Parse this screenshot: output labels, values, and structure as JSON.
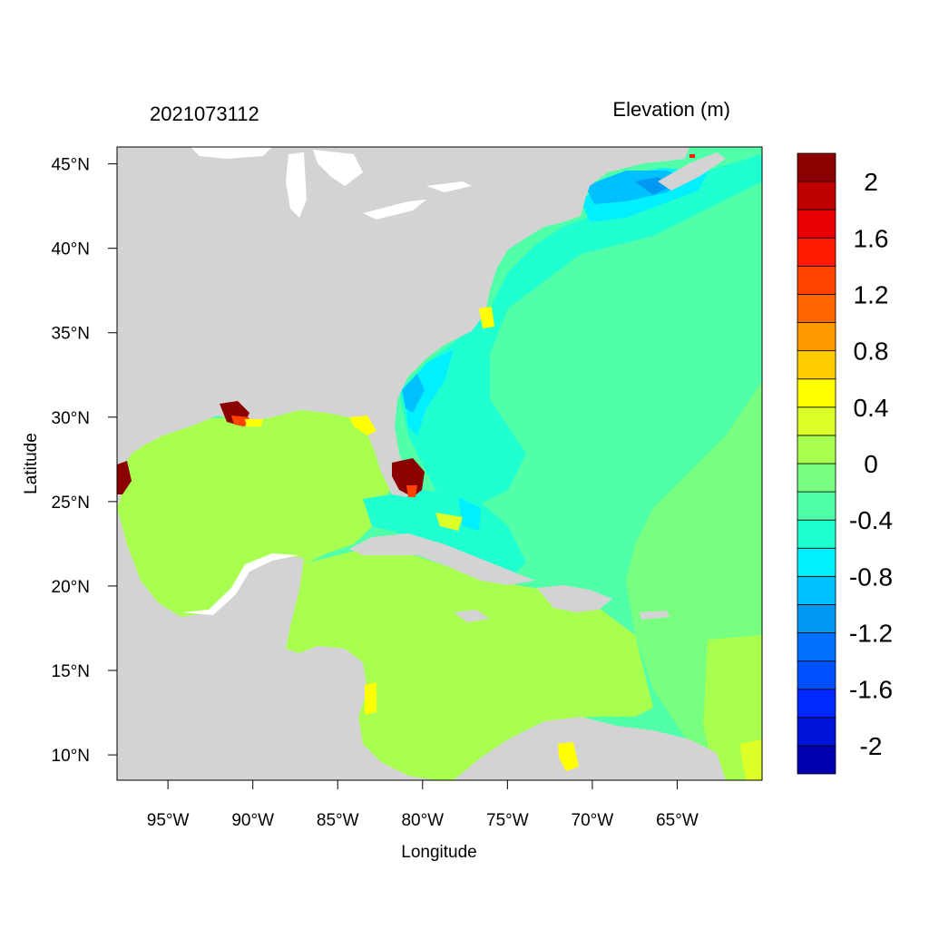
{
  "title_left": "2021073112",
  "title_right": "Elevation (m)",
  "x_axis": {
    "label": "Longitude",
    "ticks": [
      {
        "value": -95,
        "label": "95°W"
      },
      {
        "value": -90,
        "label": "90°W"
      },
      {
        "value": -85,
        "label": "85°W"
      },
      {
        "value": -80,
        "label": "80°W"
      },
      {
        "value": -75,
        "label": "75°W"
      },
      {
        "value": -70,
        "label": "70°W"
      },
      {
        "value": -65,
        "label": "65°W"
      }
    ]
  },
  "y_axis": {
    "label": "Latitude",
    "ticks": [
      {
        "value": 45,
        "label": "45°N"
      },
      {
        "value": 40,
        "label": "40°N"
      },
      {
        "value": 35,
        "label": "35°N"
      },
      {
        "value": 30,
        "label": "30°N"
      },
      {
        "value": 25,
        "label": "25°N"
      },
      {
        "value": 20,
        "label": "20°N"
      },
      {
        "value": 15,
        "label": "15°N"
      },
      {
        "value": 10,
        "label": "10°N"
      }
    ]
  },
  "extent": {
    "lon_min": -98,
    "lon_max": -60,
    "lat_min": 8.5,
    "lat_max": 46
  },
  "colorbar": {
    "colors": [
      "#0000b0",
      "#0014d8",
      "#0028ff",
      "#0050ff",
      "#0070ff",
      "#0098f0",
      "#00c0ff",
      "#00f0ff",
      "#20ffd0",
      "#50ffa8",
      "#78ff80",
      "#a8ff50",
      "#dcff28",
      "#ffff00",
      "#ffcc00",
      "#ff9900",
      "#ff6600",
      "#ff4400",
      "#ff1a00",
      "#e60000",
      "#bf0000",
      "#8b0000"
    ],
    "labels": [
      {
        "level": -2.0,
        "label": "-2"
      },
      {
        "level": -1.6,
        "label": "-1.6"
      },
      {
        "level": -1.2,
        "label": "-1.2"
      },
      {
        "level": -0.8,
        "label": "-0.8"
      },
      {
        "level": -0.4,
        "label": "-0.4"
      },
      {
        "level": 0.0,
        "label": "0"
      },
      {
        "level": 0.4,
        "label": "0.4"
      },
      {
        "level": 0.8,
        "label": "0.8"
      },
      {
        "level": 1.2,
        "label": "1.2"
      },
      {
        "level": 1.6,
        "label": "1.6"
      },
      {
        "level": 2.0,
        "label": "2"
      }
    ]
  },
  "map_colors": {
    "land": "#d3d3d3",
    "lakes": "#ffffff",
    "ocean_base": "#50ffa8",
    "gulf_caribbean": "#a8ff50",
    "shelf_neg": "#20ffd0",
    "deep_neg": "#00f0ff",
    "strong_neg": "#0098f0",
    "surge_high": "#8b0000",
    "surge_mid": "#ff4400",
    "surge_low": "#ffff00"
  }
}
